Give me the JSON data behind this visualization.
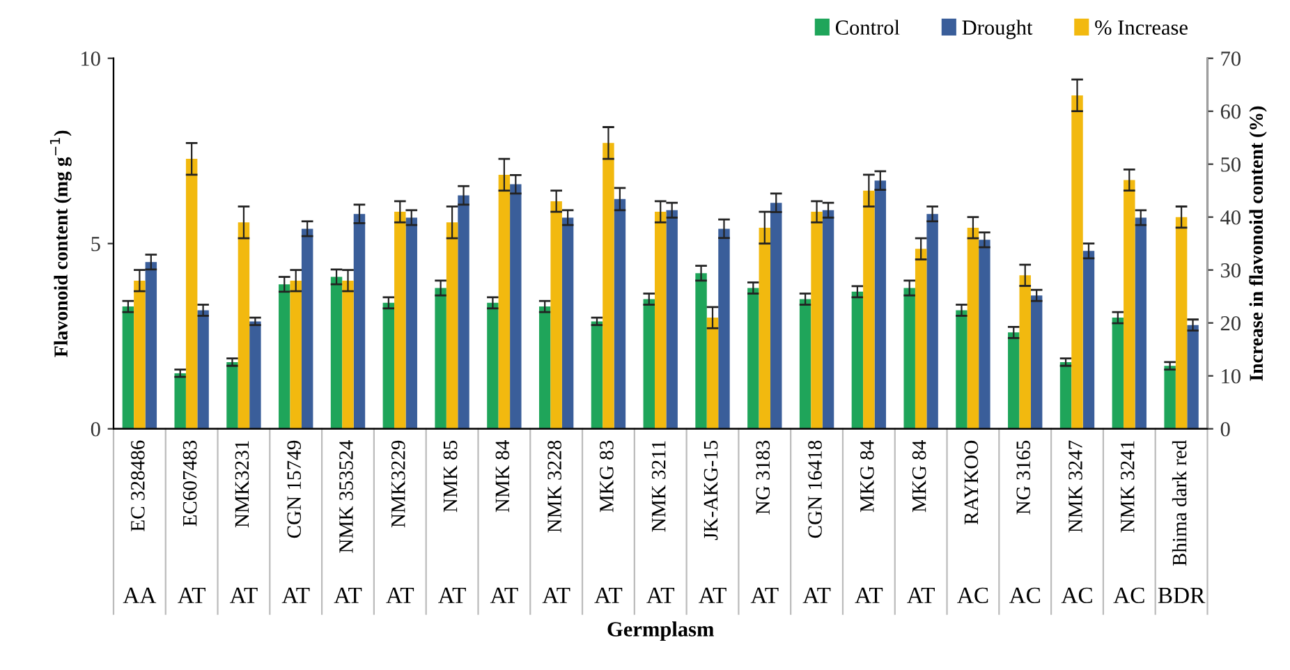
{
  "chart_data": {
    "type": "bar",
    "xlabel": "Germplasm",
    "ylabel": "Flavonoid content (mg g$^{−1}$)",
    "y2label": "Increase in flavonoid content (%)",
    "categories": [
      "EC 328486",
      "EC607483",
      "NMK3231",
      "CGN 15749",
      "NMK 353524",
      "NMK3229",
      "NMK 85",
      "NMK 84",
      "NMK 3228",
      "MKG 83",
      "NMK 3211",
      "JK-AKG-15",
      "NG 3183",
      "CGN 16418",
      "MKG 84",
      "MKG 84",
      "RAYKOO",
      "NG 3165",
      "NMK 3247",
      "NMK 3241",
      "Bhima dark red"
    ],
    "annotations": [
      "AA",
      "AT",
      "AT",
      "AT",
      "AT",
      "AT",
      "AT",
      "AT",
      "AT",
      "AT",
      "AT",
      "AT",
      "AT",
      "AT",
      "AT",
      "AT",
      "AC",
      "AC",
      "AC",
      "AC",
      "BDR"
    ],
    "series": [
      {
        "name": "Control",
        "color": "#1fa55a",
        "values": [
          3.3,
          1.5,
          1.8,
          3.9,
          4.1,
          3.4,
          3.8,
          3.4,
          3.3,
          2.9,
          3.5,
          4.2,
          3.8,
          3.5,
          3.7,
          3.8,
          3.2,
          2.6,
          1.8,
          3.0,
          1.7
        ],
        "errors": [
          0.15,
          0.1,
          0.1,
          0.2,
          0.2,
          0.15,
          0.2,
          0.15,
          0.15,
          0.1,
          0.15,
          0.2,
          0.15,
          0.15,
          0.15,
          0.2,
          0.15,
          0.15,
          0.1,
          0.15,
          0.1
        ]
      },
      {
        "name": "Drought",
        "color": "#3a5e9a",
        "values": [
          4.5,
          3.2,
          2.9,
          5.4,
          5.8,
          5.7,
          6.3,
          6.6,
          5.7,
          6.2,
          5.9,
          5.4,
          6.1,
          5.9,
          6.7,
          5.8,
          5.1,
          3.6,
          4.8,
          5.7,
          2.8
        ],
        "errors": [
          0.2,
          0.15,
          0.1,
          0.2,
          0.25,
          0.2,
          0.25,
          0.25,
          0.2,
          0.3,
          0.2,
          0.25,
          0.25,
          0.2,
          0.25,
          0.2,
          0.2,
          0.15,
          0.2,
          0.2,
          0.15
        ]
      },
      {
        "name": "% Increase",
        "color": "#f2b90f",
        "axis": "y2",
        "values": [
          28,
          51,
          39,
          28,
          28,
          41,
          39,
          48,
          43,
          54,
          41,
          21,
          38,
          41,
          45,
          34,
          38,
          29,
          63,
          47,
          40
        ],
        "errors": [
          2,
          3,
          3,
          2,
          2,
          2,
          3,
          3,
          2,
          3,
          2,
          2,
          3,
          2,
          3,
          2,
          2,
          2,
          3,
          2,
          2
        ]
      }
    ],
    "ylim": [
      0,
      10
    ],
    "yticks": [
      0,
      5,
      10
    ],
    "y2lim": [
      0,
      70
    ],
    "y2ticks": [
      0,
      10,
      20,
      30,
      40,
      50,
      60,
      70
    ],
    "legend": "top right",
    "grid": false
  }
}
